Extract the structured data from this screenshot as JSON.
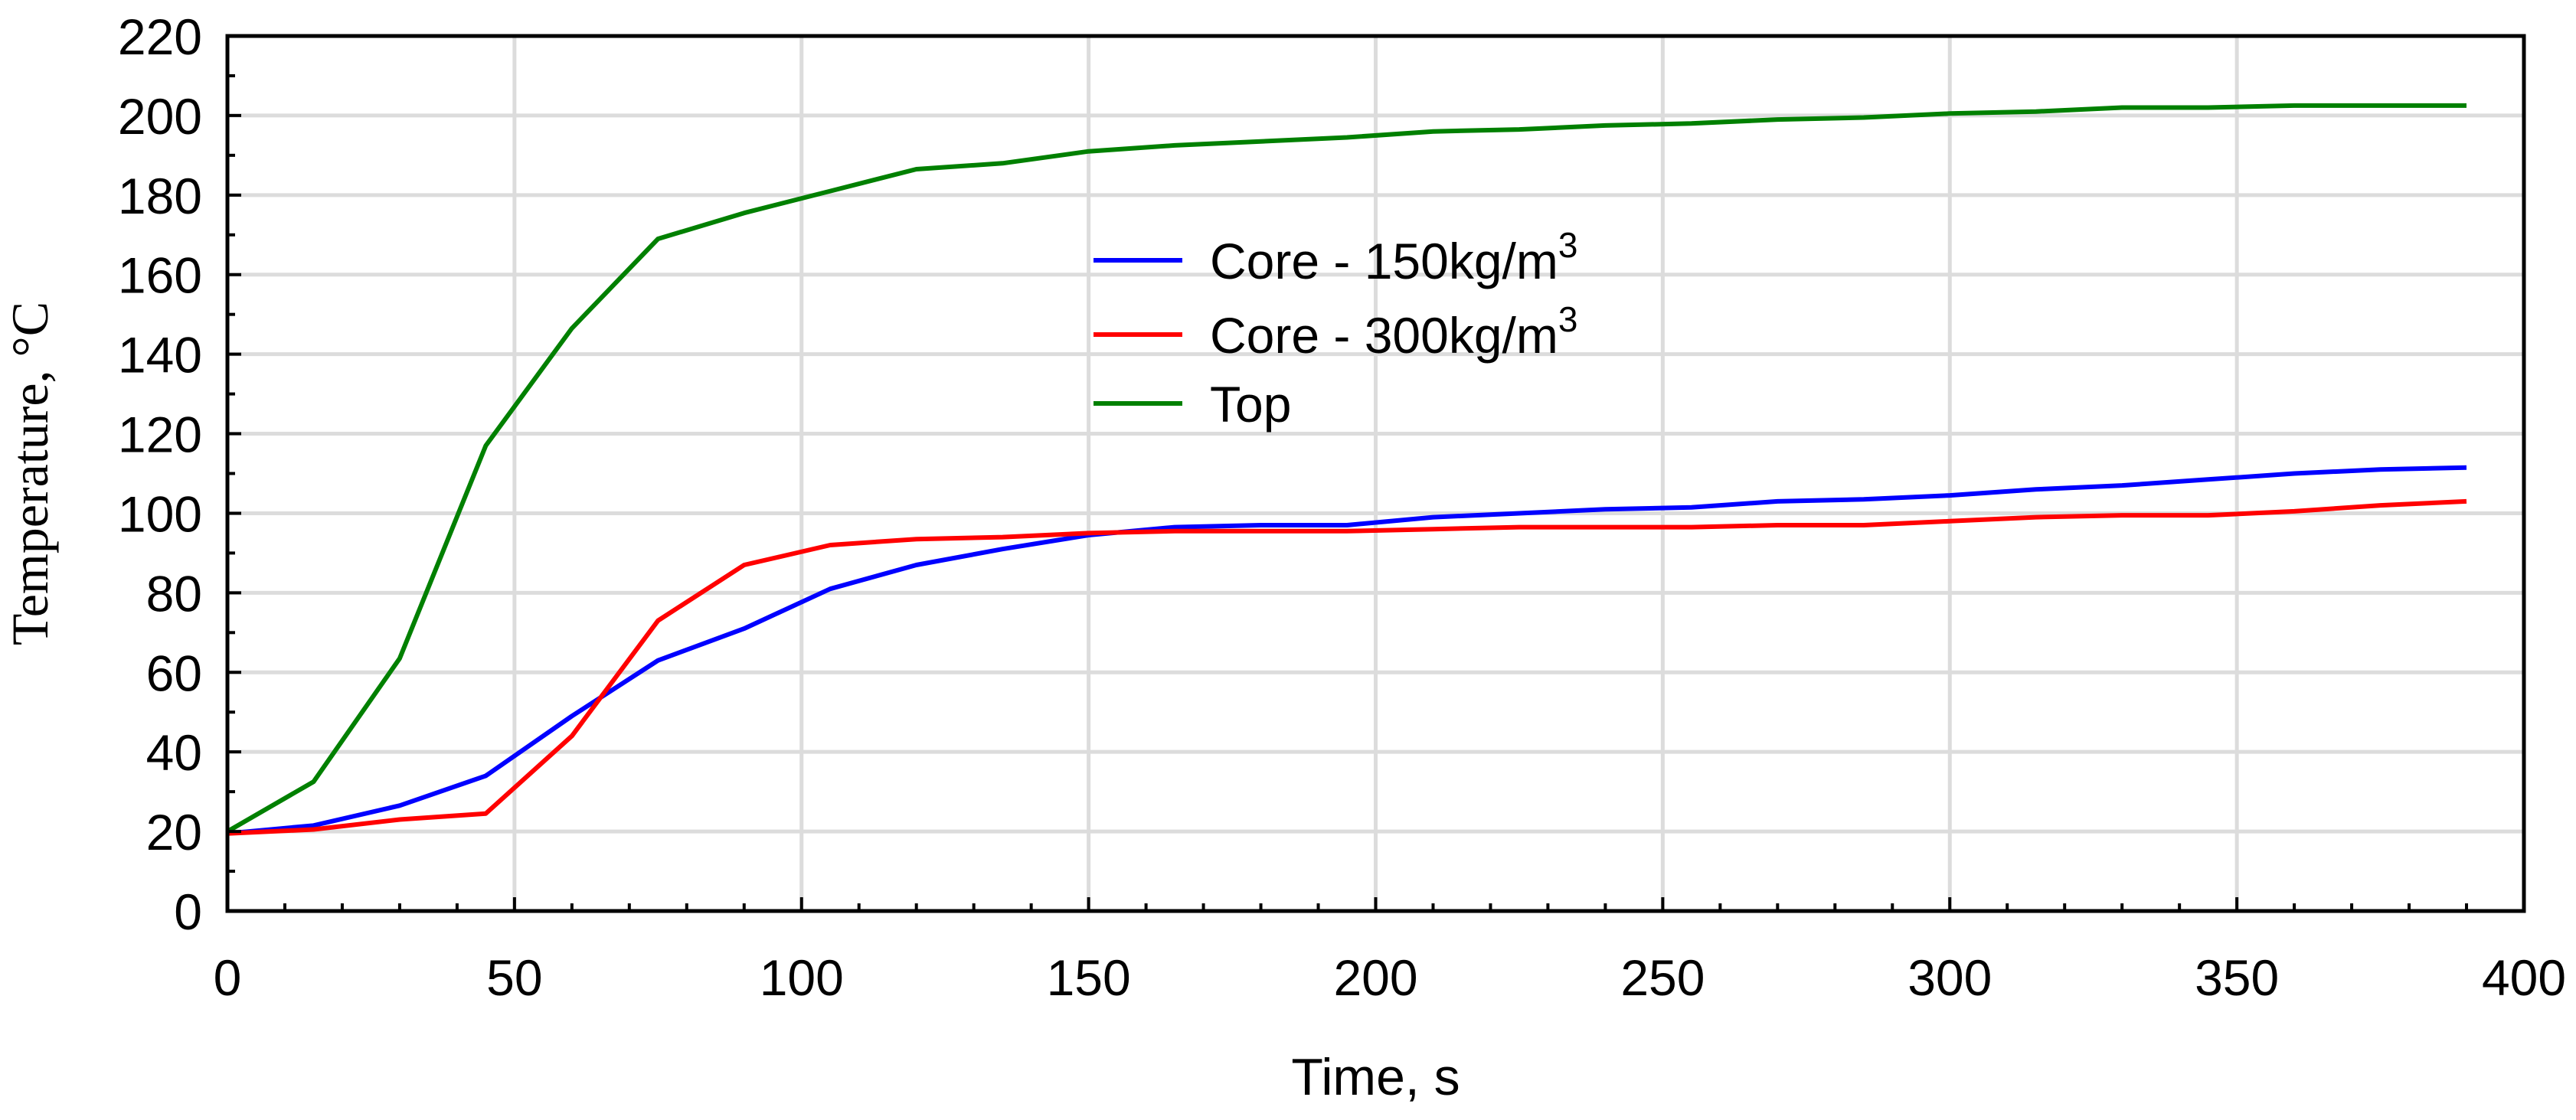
{
  "chart_data": {
    "type": "line",
    "title": "",
    "xlabel": "Time, s",
    "ylabel": "Temperature, °C",
    "xlim": [
      0,
      400
    ],
    "ylim": [
      0,
      220
    ],
    "x_ticks": [
      0,
      50,
      100,
      150,
      200,
      250,
      300,
      350,
      400
    ],
    "y_ticks": [
      0,
      20,
      40,
      60,
      80,
      100,
      120,
      140,
      160,
      180,
      200,
      220
    ],
    "x_minor_step": 10,
    "y_minor_step": 10,
    "grid": true,
    "legend_position": "top-center",
    "series": [
      {
        "name": "Core - 150kg/m",
        "name_superscript": "3",
        "color": "#0000ff",
        "x": [
          0,
          15,
          30,
          45,
          60,
          75,
          90,
          105,
          120,
          135,
          150,
          165,
          180,
          195,
          210,
          225,
          240,
          255,
          270,
          285,
          300,
          315,
          330,
          345,
          360,
          375,
          390
        ],
        "y": [
          19.5,
          21.5,
          26.5,
          34,
          49,
          63,
          71,
          81,
          87,
          91,
          94.5,
          96.5,
          97,
          97,
          99,
          100,
          101,
          101.5,
          103,
          103.5,
          104.5,
          106,
          107,
          108.5,
          110,
          111,
          111.5
        ]
      },
      {
        "name": "Core - 300kg/m",
        "name_superscript": "3",
        "color": "#ff0000",
        "x": [
          0,
          15,
          30,
          45,
          60,
          75,
          90,
          105,
          120,
          135,
          150,
          165,
          180,
          195,
          210,
          225,
          240,
          255,
          270,
          285,
          300,
          315,
          330,
          345,
          360,
          375,
          390
        ],
        "y": [
          19.5,
          20.5,
          23,
          24.5,
          44,
          73,
          87,
          92,
          93.5,
          94,
          95,
          95.5,
          95.5,
          95.5,
          96,
          96.5,
          96.5,
          96.5,
          97,
          97,
          98,
          99,
          99.5,
          99.5,
          100.5,
          102,
          103
        ]
      },
      {
        "name": "Top",
        "name_superscript": "",
        "color": "#008000",
        "x": [
          0,
          15,
          30,
          45,
          60,
          75,
          90,
          105,
          120,
          135,
          150,
          165,
          180,
          195,
          210,
          225,
          240,
          255,
          270,
          285,
          300,
          315,
          330,
          345,
          360,
          375,
          390
        ],
        "y": [
          20,
          32.5,
          63.5,
          117,
          146.5,
          169,
          175.5,
          181,
          186.5,
          188,
          191,
          192.5,
          193.5,
          194.5,
          196,
          196.5,
          197.5,
          198,
          199,
          199.5,
          200.5,
          201,
          202,
          202,
          202.5,
          202.5,
          202.5
        ]
      }
    ]
  }
}
